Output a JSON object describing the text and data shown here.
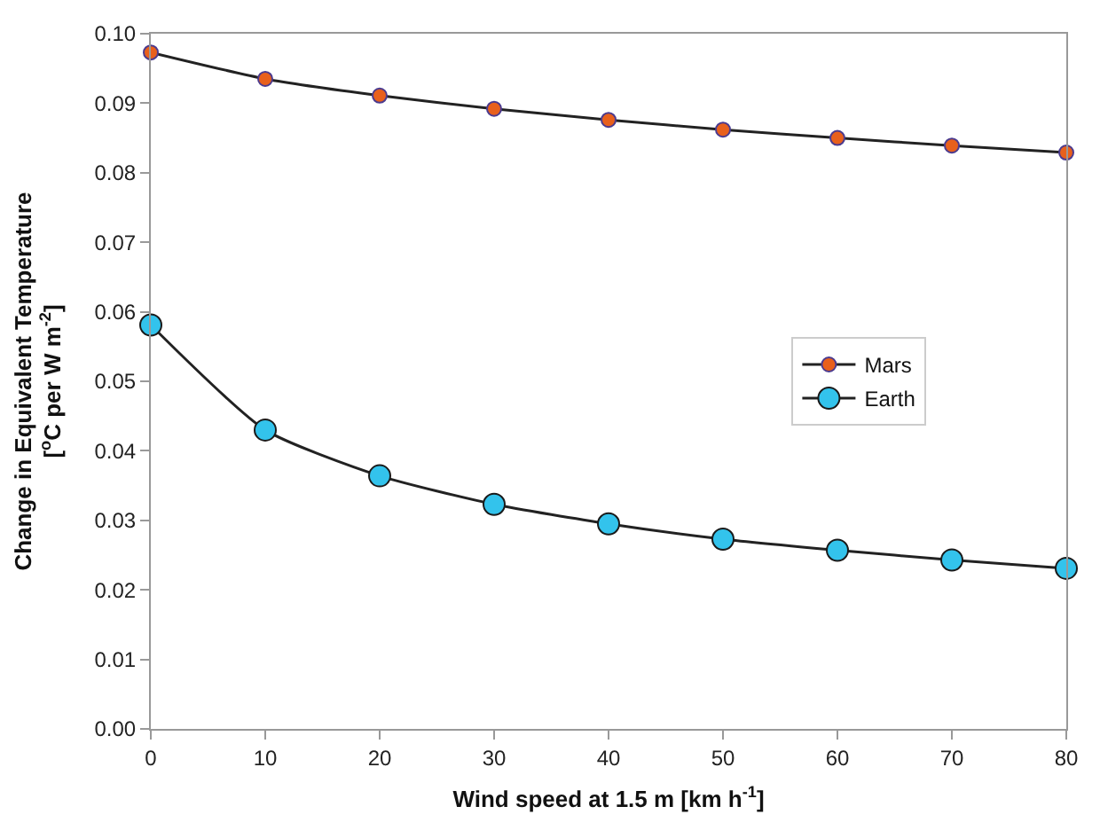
{
  "chart_data": {
    "type": "line",
    "xlabel": "Wind speed at 1.5 m [km h$^{-1}$]",
    "ylabel": "Change in Equivalent Temperature\n[$^{o}$C per W m$^{-2}$]",
    "x": [
      0,
      10,
      20,
      30,
      40,
      50,
      60,
      70,
      80
    ],
    "series": [
      {
        "name": "Mars",
        "color": "#e8601c",
        "values": [
          0.0973,
          0.0935,
          0.0911,
          0.0892,
          0.0876,
          0.0862,
          0.085,
          0.0839,
          0.0829
        ]
      },
      {
        "name": "Earth",
        "color": "#33c3ec",
        "values": [
          0.0581,
          0.043,
          0.0364,
          0.0323,
          0.0295,
          0.0273,
          0.0257,
          0.0243,
          0.0231
        ]
      }
    ],
    "xlim": [
      0,
      80
    ],
    "xticks": [
      0,
      10,
      20,
      30,
      40,
      50,
      60,
      70,
      80
    ],
    "ylim": [
      0,
      0.1
    ],
    "yticks": [
      {
        "value": 0,
        "label": "0.00"
      },
      {
        "value": 0.01,
        "label": "0.01"
      },
      {
        "value": 0.02,
        "label": "0.02"
      },
      {
        "value": 0.03,
        "label": "0.03"
      },
      {
        "value": 0.04,
        "label": "0.04"
      },
      {
        "value": 0.05,
        "label": "0.05"
      },
      {
        "value": 0.06,
        "label": "0.06"
      },
      {
        "value": 0.07,
        "label": "0.07"
      },
      {
        "value": 0.08,
        "label": "0.08"
      },
      {
        "value": 0.09,
        "label": "0.09"
      },
      {
        "value": 0.1,
        "label": "0.10"
      }
    ],
    "legend": "right",
    "marker": "circle",
    "line_style": "solid"
  }
}
